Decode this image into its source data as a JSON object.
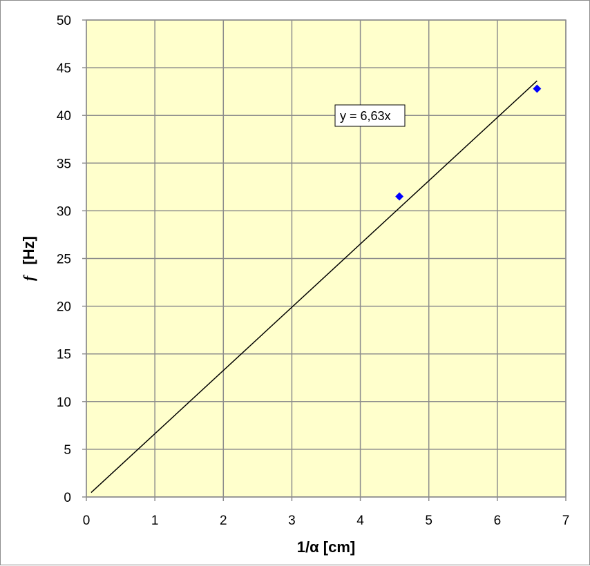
{
  "chart_data": {
    "type": "scatter",
    "title": "",
    "xlabel": "1/α [cm]",
    "ylabel_symbol": "f",
    "ylabel_unit": "[Hz]",
    "xlim": [
      0,
      7
    ],
    "ylim": [
      0,
      50
    ],
    "x_ticks": [
      "0",
      "1",
      "2",
      "3",
      "4",
      "5",
      "6",
      "7"
    ],
    "y_ticks": [
      "0",
      "5",
      "10",
      "15",
      "20",
      "25",
      "30",
      "35",
      "40",
      "45",
      "50"
    ],
    "grid": true,
    "legend": "none",
    "series": [
      {
        "points": [
          {
            "x": 4.57,
            "y": 31.5
          },
          {
            "x": 6.58,
            "y": 42.8
          }
        ]
      }
    ],
    "trendline": {
      "equation": "y = 6,63x",
      "slope": 6.63,
      "x_range": [
        0.07,
        6.58
      ]
    },
    "colors": {
      "plot_background": "#ffffcc",
      "grid": "#8c8c8c",
      "marker": "#0000ff",
      "trendline": "#000000"
    }
  }
}
